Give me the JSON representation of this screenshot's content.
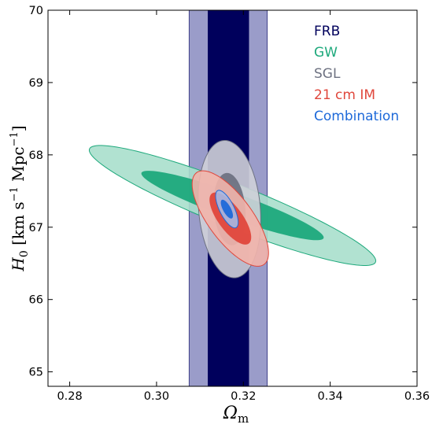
{
  "chart_data": {
    "type": "contour",
    "xlim": [
      0.275,
      0.36
    ],
    "ylim": [
      64.8,
      70.0
    ],
    "x_ticks": [
      "0.28",
      "0.30",
      "0.32",
      "0.34",
      "0.36"
    ],
    "y_ticks": [
      "65",
      "66",
      "67",
      "68",
      "69",
      "70"
    ],
    "xlabel": {
      "main": "Ω",
      "sub": "m"
    },
    "ylabel": {
      "main": "H",
      "sub": "0",
      "unit_open": " [km s",
      "exp1": "−1",
      "unit_mid": " Mpc",
      "exp2": "−1",
      "unit_close": "]"
    },
    "legend_position": "top-right",
    "series": [
      {
        "name": "FRB",
        "color": "#00005c",
        "outer_color": "#9a9cc9",
        "shape": "band",
        "x_center": 0.3165,
        "inner_range": [
          0.3118,
          0.3213
        ],
        "outer_range": [
          0.3075,
          0.3255
        ]
      },
      {
        "name": "GW",
        "color": "#1ea97c",
        "outer_color": "#a8dfcc",
        "shape": "ellipse",
        "center": [
          0.3175,
          67.3
        ],
        "inner_half_widths": [
          0.021,
          0.48
        ],
        "outer_half_widths": [
          0.033,
          0.83
        ],
        "correlation": -0.922
      },
      {
        "name": "SGL",
        "color": "#6e7282",
        "outer_color": "#cfd0d8",
        "shape": "ellipse",
        "center": [
          0.3168,
          67.25
        ],
        "inner_half_widths": [
          0.0037,
          0.5
        ],
        "outer_half_widths": [
          0.0072,
          0.95
        ],
        "correlation": -0.15
      },
      {
        "name": "21 cm IM",
        "color": "#e0473c",
        "outer_color": "#f2b4ab",
        "shape": "ellipse",
        "center": [
          0.317,
          67.12
        ],
        "inner_half_widths": [
          0.0048,
          0.36
        ],
        "outer_half_widths": [
          0.0088,
          0.66
        ],
        "correlation": -0.72
      },
      {
        "name": "Combination",
        "color": "#1d69d9",
        "outer_color": "#a5b9e6",
        "shape": "ellipse",
        "center": [
          0.3162,
          67.25
        ],
        "inner_half_widths": [
          0.0014,
          0.13
        ],
        "outer_half_widths": [
          0.0026,
          0.26
        ],
        "correlation": -0.7
      }
    ]
  }
}
